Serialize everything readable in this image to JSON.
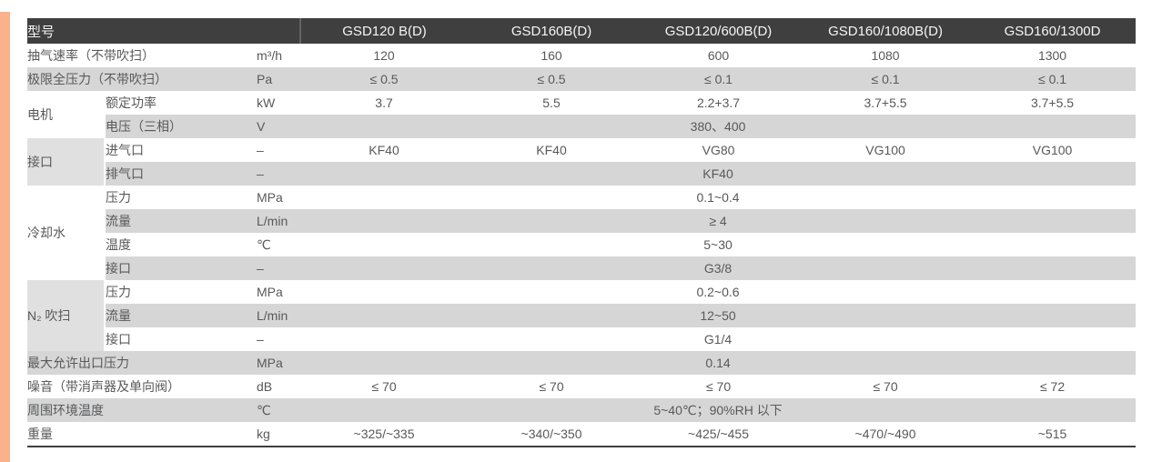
{
  "colors": {
    "accent_orange": "#f9b28a",
    "header_bg": "#3f3f3f",
    "header_text": "#f5f5f5",
    "row_gray": "#d6d6d6",
    "group_cell_gray": "#e0e0e0",
    "body_text": "#58595b",
    "bottom_border": "#3f3f3f"
  },
  "table": {
    "header": {
      "model_label": "型号",
      "models": [
        "GSD120 B(D)",
        "GSD160B(D)",
        "GSD120/600B(D)",
        "GSD160/1080B(D)",
        "GSD160/1300D"
      ]
    },
    "rows": [
      {
        "type": "simple",
        "label": "抽气速率（不带吹扫）",
        "unit": "m³/h",
        "shade": "white",
        "values": [
          "120",
          "160",
          "600",
          "1080",
          "1300"
        ]
      },
      {
        "type": "simple",
        "label": "极限全压力（不带吹扫）",
        "unit": "Pa",
        "shade": "gray",
        "values": [
          "≤ 0.5",
          "≤ 0.5",
          "≤ 0.1",
          "≤ 0.1",
          "≤ 0.1"
        ]
      },
      {
        "type": "group",
        "group": "电机",
        "group_shade": "white",
        "subrows": [
          {
            "label": "额定功率",
            "unit": "kW",
            "shade": "white",
            "values": [
              "3.7",
              "5.5",
              "2.2+3.7",
              "3.7+5.5",
              "3.7+5.5"
            ]
          },
          {
            "label": "电压（三相）",
            "unit": "V",
            "shade": "gray",
            "span": "380、400"
          }
        ]
      },
      {
        "type": "group",
        "group": "接口",
        "group_shade": "gray",
        "subrows": [
          {
            "label": "进气口",
            "unit": "–",
            "shade": "white",
            "values": [
              "KF40",
              "KF40",
              "VG80",
              "VG100",
              "VG100"
            ]
          },
          {
            "label": "排气口",
            "unit": "–",
            "shade": "gray",
            "span": "KF40"
          }
        ]
      },
      {
        "type": "group",
        "group": "冷却水",
        "group_shade": "white",
        "subrows": [
          {
            "label": "压力",
            "unit": "MPa",
            "shade": "white",
            "span": "0.1~0.4"
          },
          {
            "label": "流量",
            "unit": "L/min",
            "shade": "gray",
            "span": "≥ 4"
          },
          {
            "label": "温度",
            "unit": "℃",
            "shade": "white",
            "span": "5~30"
          },
          {
            "label": "接口",
            "unit": "–",
            "shade": "gray",
            "span": "G3/8"
          }
        ]
      },
      {
        "type": "group",
        "group": "N₂ 吹扫",
        "group_shade": "gray",
        "subrows": [
          {
            "label": "压力",
            "unit": "MPa",
            "shade": "white",
            "span": "0.2~0.6"
          },
          {
            "label": "流量",
            "unit": "L/min",
            "shade": "gray",
            "span": "12~50"
          },
          {
            "label": "接口",
            "unit": "–",
            "shade": "white",
            "span": "G1/4"
          }
        ]
      },
      {
        "type": "simple",
        "label": "最大允许出口压力",
        "unit": "MPa",
        "shade": "gray",
        "span": "0.14"
      },
      {
        "type": "simple",
        "label": "噪音（带消声器及单向阀）",
        "unit": "dB",
        "shade": "white",
        "values": [
          "≤ 70",
          "≤ 70",
          "≤ 70",
          "≤ 70",
          "≤ 72"
        ]
      },
      {
        "type": "simple",
        "label": "周围环境温度",
        "unit": "℃",
        "shade": "gray",
        "span": "5~40℃；90%RH 以下"
      },
      {
        "type": "simple",
        "label": "重量",
        "unit": "kg",
        "shade": "white",
        "values": [
          "~325/~335",
          "~340/~350",
          "~425/~455",
          "~470/~490",
          "~515"
        ]
      }
    ]
  }
}
